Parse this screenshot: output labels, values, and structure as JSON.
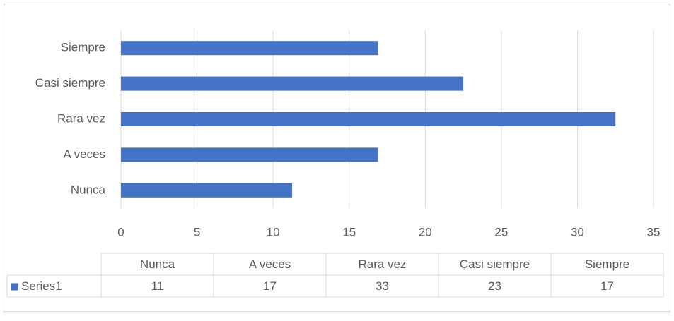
{
  "chart_data": {
    "type": "bar",
    "orientation": "horizontal",
    "categories": [
      "Nunca",
      "A veces",
      "Rara vez",
      "Casi siempre",
      "Siempre"
    ],
    "series": [
      {
        "name": "Series1",
        "color": "#4472c4",
        "values": [
          11.25,
          16.9,
          32.5,
          22.5,
          16.9
        ],
        "value_labels": [
          "11",
          "17",
          "33",
          "23",
          "17"
        ]
      }
    ],
    "xlim": [
      0,
      35
    ],
    "xticks": [
      0,
      5,
      10,
      15,
      20,
      25,
      30,
      35
    ],
    "grid": true,
    "data_table": true
  }
}
